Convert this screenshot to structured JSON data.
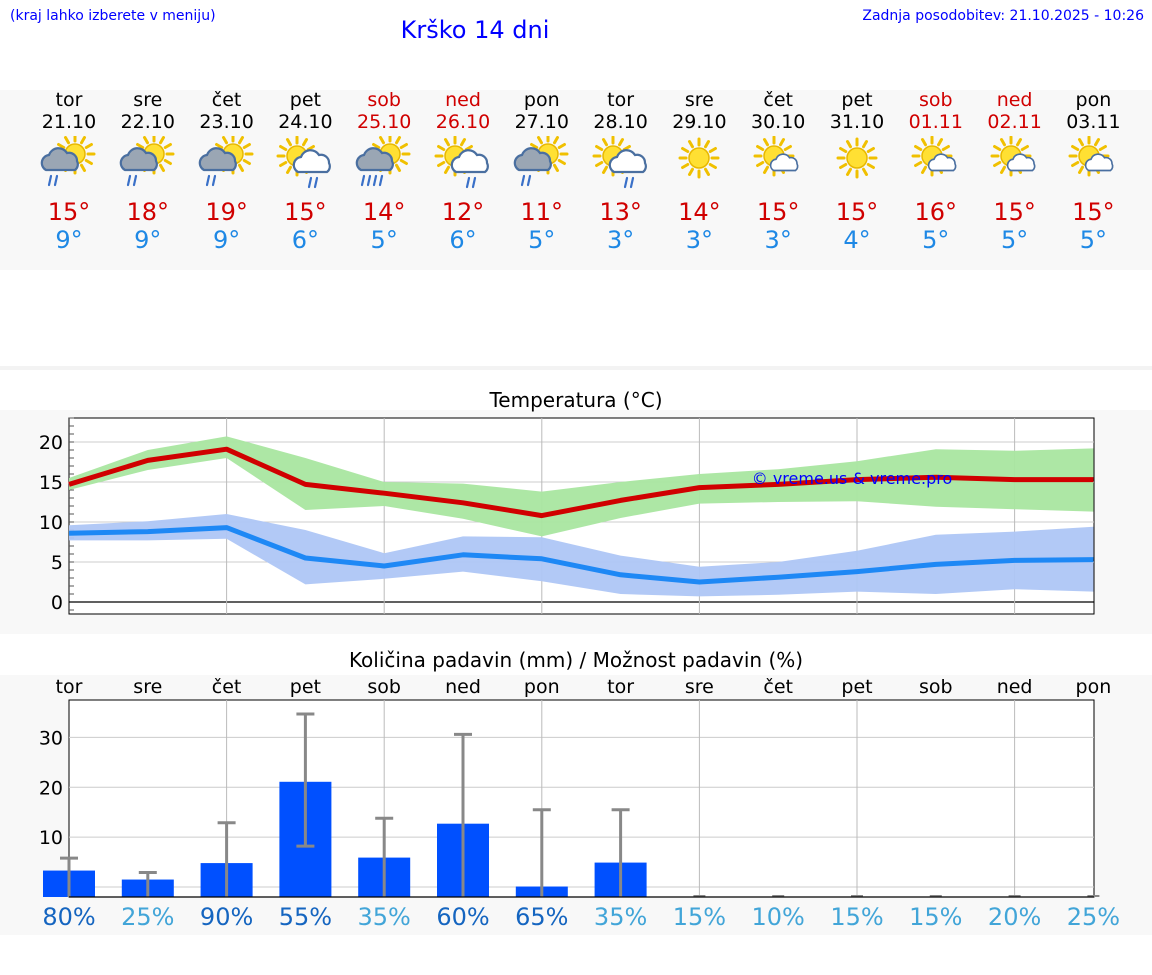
{
  "header": {
    "hint": "(kraj lahko izberete v meniju)",
    "title": "Krško 14 dni",
    "updated": "Zadnja posodobitev: 21.10.2025 - 10:26"
  },
  "colors": {
    "link": "#0000ff",
    "max_temp": "#d00000",
    "min_temp": "#1e88e5",
    "max_band": "#a9e6a0",
    "min_band": "#aec6f5",
    "precip_bar": "#0050ff",
    "error_bar": "#888888",
    "prob_high": "#1565c0",
    "prob_low": "#42a5d8"
  },
  "days": [
    {
      "name": "tor",
      "date": "21.10",
      "max": "15°",
      "min": "9°",
      "weekend": false,
      "icon": "sun-cloud-rain-icon"
    },
    {
      "name": "sre",
      "date": "22.10",
      "max": "18°",
      "min": "9°",
      "weekend": false,
      "icon": "sun-cloud-rain-icon"
    },
    {
      "name": "čet",
      "date": "23.10",
      "max": "19°",
      "min": "9°",
      "weekend": false,
      "icon": "sun-cloud-rain-icon"
    },
    {
      "name": "pet",
      "date": "24.10",
      "max": "15°",
      "min": "6°",
      "weekend": false,
      "icon": "sun-cloud-showers-icon"
    },
    {
      "name": "sob",
      "date": "25.10",
      "max": "14°",
      "min": "5°",
      "weekend": true,
      "icon": "sun-cloud-heavy-rain-icon"
    },
    {
      "name": "ned",
      "date": "26.10",
      "max": "12°",
      "min": "6°",
      "weekend": true,
      "icon": "sun-cloud-showers-icon"
    },
    {
      "name": "pon",
      "date": "27.10",
      "max": "11°",
      "min": "5°",
      "weekend": false,
      "icon": "sun-cloud-rain-icon"
    },
    {
      "name": "tor",
      "date": "28.10",
      "max": "13°",
      "min": "3°",
      "weekend": false,
      "icon": "sun-cloud-showers-icon"
    },
    {
      "name": "sre",
      "date": "29.10",
      "max": "14°",
      "min": "3°",
      "weekend": false,
      "icon": "sun-icon"
    },
    {
      "name": "čet",
      "date": "30.10",
      "max": "15°",
      "min": "3°",
      "weekend": false,
      "icon": "sun-small-cloud-icon"
    },
    {
      "name": "pet",
      "date": "31.10",
      "max": "15°",
      "min": "4°",
      "weekend": false,
      "icon": "sun-icon"
    },
    {
      "name": "sob",
      "date": "01.11",
      "max": "16°",
      "min": "5°",
      "weekend": true,
      "icon": "sun-small-cloud-icon"
    },
    {
      "name": "ned",
      "date": "02.11",
      "max": "15°",
      "min": "5°",
      "weekend": true,
      "icon": "sun-small-cloud-icon"
    },
    {
      "name": "pon",
      "date": "03.11",
      "max": "15°",
      "min": "5°",
      "weekend": false,
      "icon": "sun-small-cloud-icon"
    }
  ],
  "chart_data": [
    {
      "type": "line",
      "title": "Temperatura (°C)",
      "watermark": "© vreme.us & vreme.pro",
      "ylim": [
        -1.5,
        23
      ],
      "yticks": [
        0,
        5,
        10,
        15,
        20
      ],
      "grid": true,
      "x": [
        "21.10",
        "22.10",
        "23.10",
        "24.10",
        "25.10",
        "26.10",
        "27.10",
        "28.10",
        "29.10",
        "30.10",
        "31.10",
        "01.11",
        "02.11",
        "03.11"
      ],
      "series": [
        {
          "values": [
            14.7,
            17.7,
            19.1,
            14.7,
            13.6,
            12.4,
            10.8,
            12.7,
            14.3,
            14.7,
            15.3,
            15.6,
            15.3,
            15.3
          ],
          "band_low": [
            14.0,
            16.5,
            18.0,
            11.5,
            12.0,
            10.4,
            8.2,
            10.5,
            12.3,
            12.5,
            12.6,
            11.9,
            11.6,
            11.3
          ],
          "band_high": [
            15.5,
            19.0,
            20.7,
            18.0,
            15.0,
            14.8,
            13.8,
            15.0,
            16.0,
            16.6,
            17.6,
            19.1,
            18.9,
            19.2
          ]
        },
        {
          "values": [
            8.6,
            8.8,
            9.3,
            5.5,
            4.5,
            5.9,
            5.4,
            3.4,
            2.5,
            3.1,
            3.8,
            4.7,
            5.2,
            5.3
          ],
          "band_low": [
            7.7,
            7.7,
            7.9,
            2.2,
            2.9,
            3.8,
            2.6,
            1.0,
            0.7,
            0.9,
            1.3,
            1.0,
            1.6,
            1.3
          ],
          "band_high": [
            9.6,
            10.1,
            11.0,
            9.0,
            6.1,
            8.2,
            8.1,
            5.8,
            4.4,
            5.0,
            6.4,
            8.4,
            8.8,
            9.4
          ]
        }
      ]
    },
    {
      "type": "bar",
      "title": "Količina padavin (mm) / Možnost padavin (%)",
      "ylim": [
        -2,
        37.5
      ],
      "yticks": [
        0,
        10,
        20,
        30
      ],
      "grid": true,
      "categories": [
        "tor",
        "sre",
        "čet",
        "pet",
        "sob",
        "ned",
        "pon",
        "tor",
        "sre",
        "čet",
        "pet",
        "sob",
        "ned",
        "pon"
      ],
      "values": [
        3.3,
        1.5,
        4.8,
        21.1,
        5.9,
        12.7,
        0.1,
        4.9,
        0,
        0,
        0,
        0,
        0,
        0
      ],
      "error_low": [
        0,
        0,
        0,
        8.2,
        0,
        0,
        0,
        0,
        0,
        0,
        0,
        0,
        0,
        0
      ],
      "error_high": [
        5.8,
        2.9,
        12.9,
        34.7,
        13.8,
        30.6,
        15.5,
        15.5,
        0,
        0,
        0,
        0,
        0,
        0
      ],
      "probability": [
        "80%",
        "25%",
        "90%",
        "55%",
        "35%",
        "60%",
        "65%",
        "35%",
        "15%",
        "10%",
        "15%",
        "15%",
        "20%",
        "25%"
      ],
      "probability_values": [
        80,
        25,
        90,
        55,
        35,
        60,
        65,
        35,
        15,
        10,
        15,
        15,
        20,
        25
      ]
    }
  ]
}
